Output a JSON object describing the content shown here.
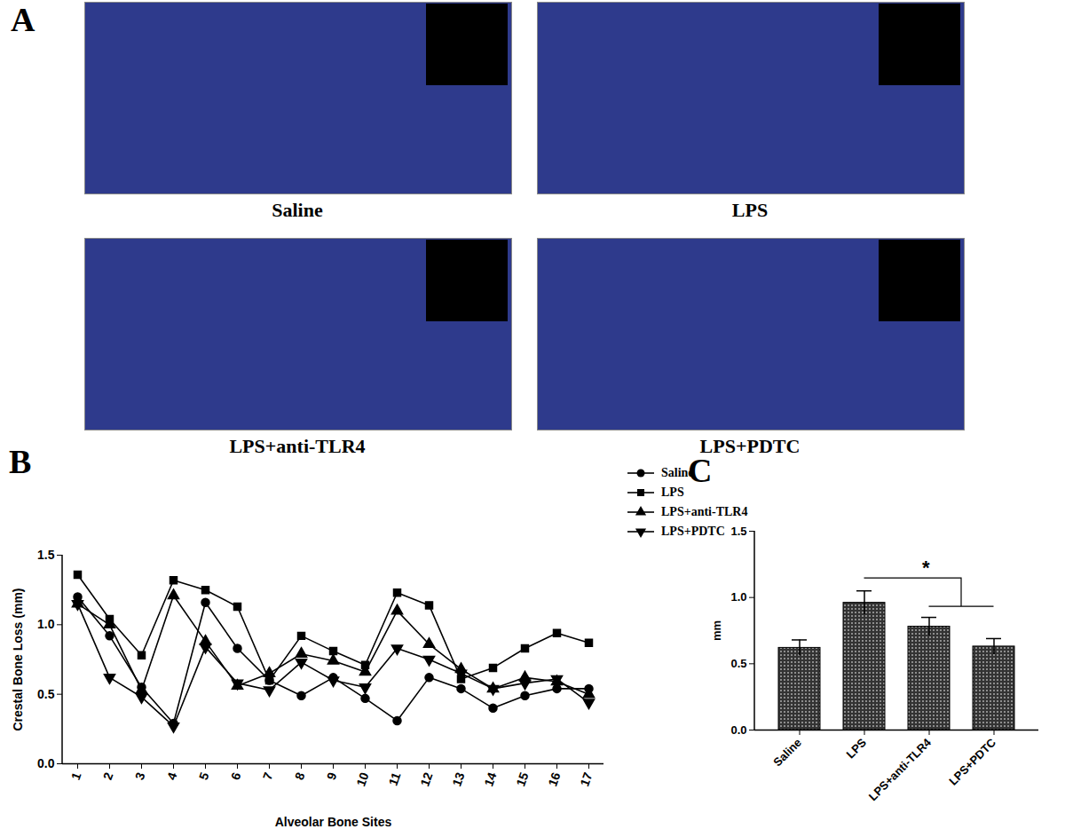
{
  "panel_a": {
    "label": "A",
    "images": [
      "Saline",
      "LPS",
      "LPS+anti-TLR4",
      "LPS+PDTC"
    ]
  },
  "chart_data": [
    {
      "type": "line",
      "panel": "B",
      "xlabel": "Alveolar Bone Sites",
      "ylabel": "Crestal Bone Loss (mm)",
      "categories": [
        "1",
        "2",
        "3",
        "4",
        "5",
        "6",
        "7",
        "8",
        "9",
        "10",
        "11",
        "12",
        "13",
        "14",
        "15",
        "16",
        "17"
      ],
      "series": [
        {
          "name": "Saline",
          "color": "#000000",
          "marker": "circle",
          "line_style": "solid",
          "values": [
            1.2,
            0.92,
            0.55,
            0.29,
            1.16,
            0.83,
            0.6,
            0.49,
            0.62,
            0.47,
            0.31,
            0.62,
            0.54,
            0.4,
            0.49,
            0.54,
            0.54
          ]
        },
        {
          "name": "LPS",
          "color": "#000000",
          "marker": "square",
          "line_style": "solid",
          "values": [
            1.36,
            1.04,
            0.78,
            1.32,
            1.25,
            1.13,
            0.6,
            0.92,
            0.81,
            0.71,
            1.23,
            1.14,
            0.61,
            0.69,
            0.83,
            0.94,
            0.87
          ]
        },
        {
          "name": "LPS+anti-TLR4",
          "color": "#000000",
          "marker": "triangle",
          "line_style": "solid",
          "values": [
            1.15,
            1.0,
            0.53,
            1.21,
            0.88,
            0.56,
            0.65,
            0.79,
            0.74,
            0.66,
            1.1,
            0.86,
            0.68,
            0.54,
            0.62,
            0.59,
            0.5
          ]
        },
        {
          "name": "LPS+PDTC",
          "color": "#000000",
          "marker": "triangle-down",
          "line_style": "solid",
          "values": [
            1.15,
            0.62,
            0.48,
            0.27,
            0.84,
            0.58,
            0.53,
            0.73,
            0.6,
            0.55,
            0.83,
            0.75,
            0.65,
            0.54,
            0.58,
            0.61,
            0.44
          ]
        }
      ],
      "ylim": [
        0,
        1.5
      ],
      "yticks": [
        {
          "value": 0,
          "label": "0.0"
        },
        {
          "value": 0.5,
          "label": "0.5"
        },
        {
          "value": 1,
          "label": "1.0"
        },
        {
          "value": 1.5,
          "label": "1.5"
        }
      ],
      "legend": "top-right",
      "grid": false
    },
    {
      "type": "bar",
      "panel": "C",
      "ylabel": "mm",
      "categories": [
        "Saline",
        "LPS",
        "LPS+anti-TLR4",
        "LPS+PDTC"
      ],
      "values": [
        0.62,
        0.96,
        0.78,
        0.63
      ],
      "errors": [
        0.06,
        0.09,
        0.07,
        0.06
      ],
      "color": "#333333",
      "ylim": [
        0,
        1.5
      ],
      "yticks": [
        {
          "value": 0,
          "label": "0.0"
        },
        {
          "value": 0.5,
          "label": "0.5"
        },
        {
          "value": 1,
          "label": "1.0"
        },
        {
          "value": 1.5,
          "label": "1.5"
        }
      ],
      "annotations": [
        {
          "text": "*",
          "from": "LPS",
          "to": [
            "LPS+anti-TLR4",
            "LPS+PDTC"
          ]
        }
      ],
      "grid": false
    }
  ]
}
